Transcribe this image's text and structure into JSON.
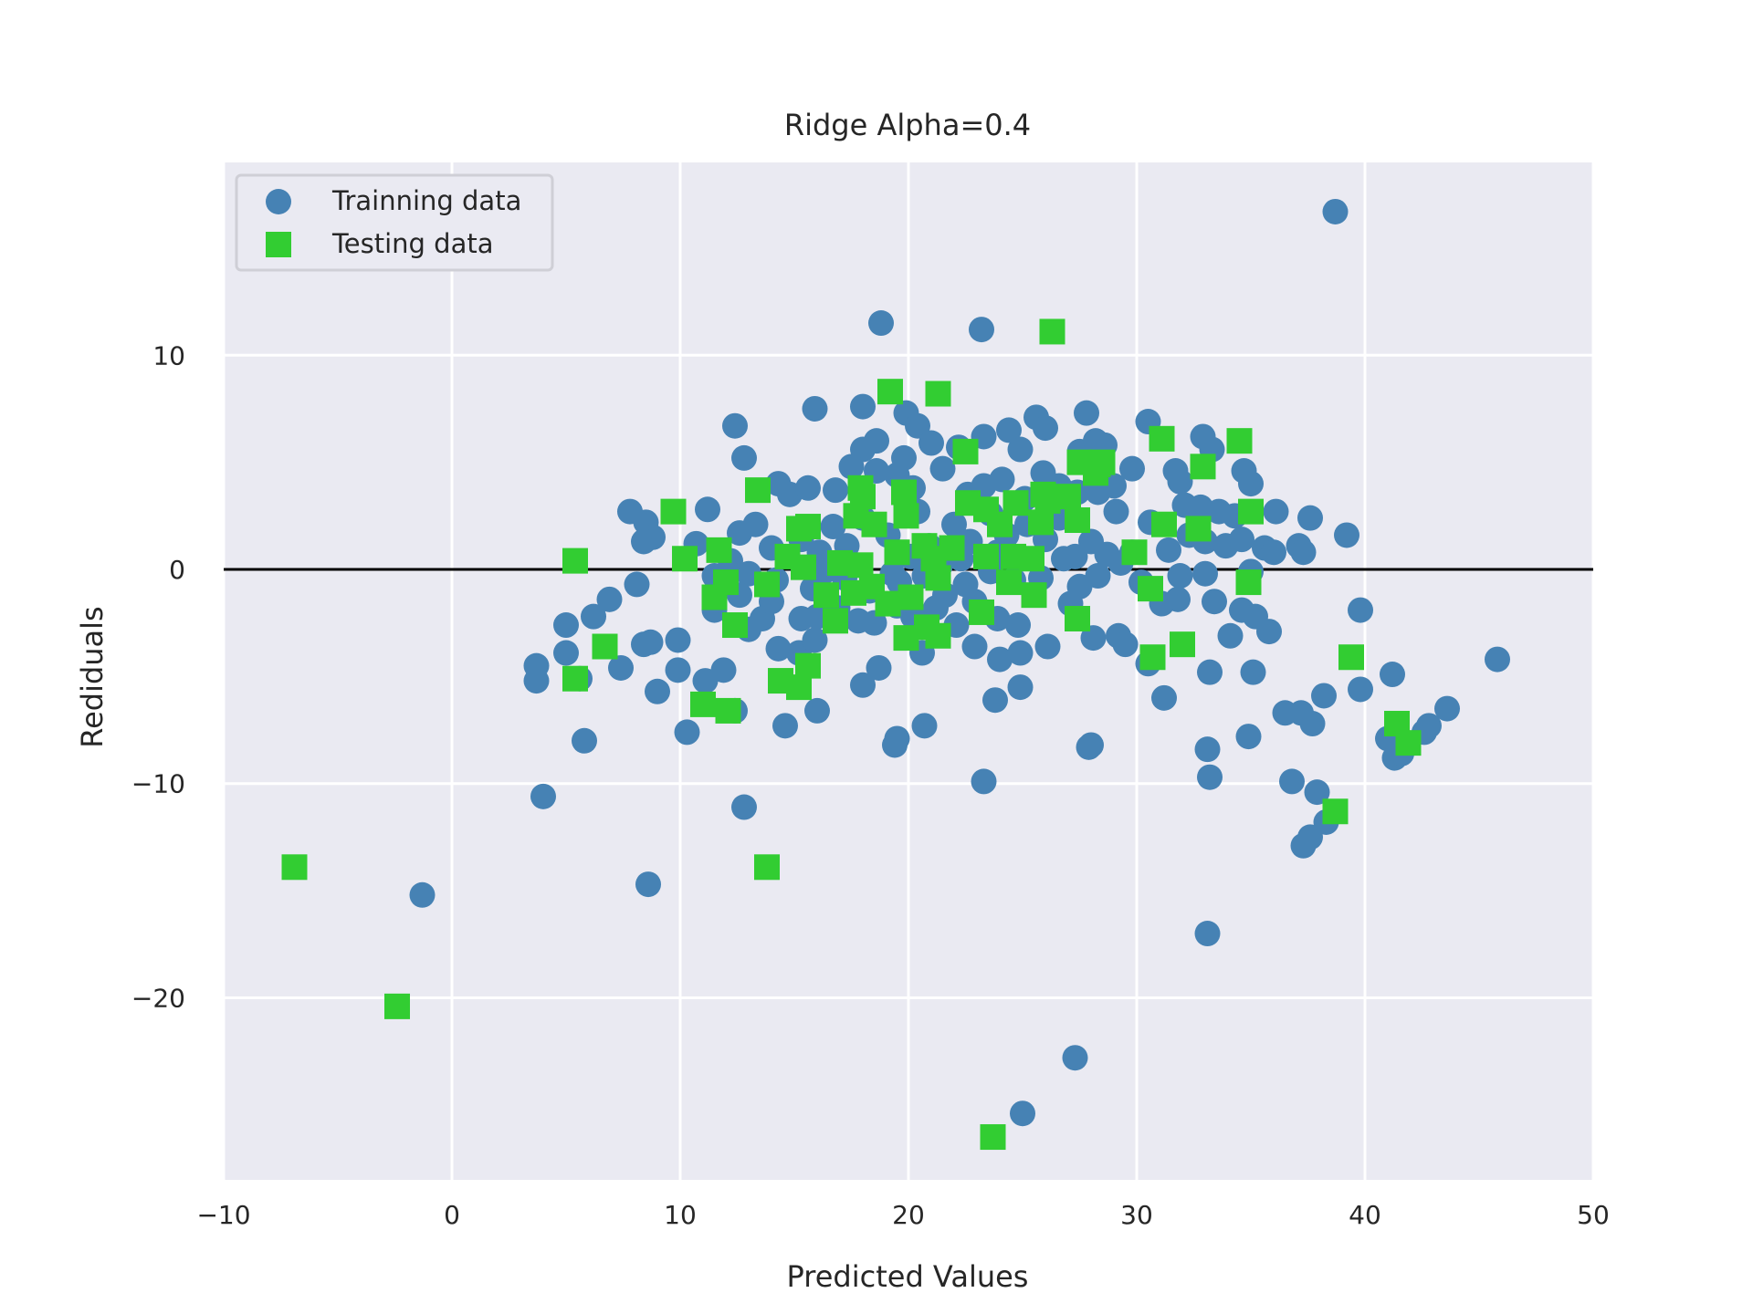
{
  "chart_data": {
    "type": "scatter",
    "title": "Ridge Alpha=0.4",
    "xlabel": "Predicted Values",
    "ylabel": "Rediduals",
    "xlim": [
      -10,
      50
    ],
    "ylim": [
      -28.5,
      19
    ],
    "xticks": [
      -10,
      0,
      10,
      20,
      30,
      40,
      50
    ],
    "xtick_labels": [
      "−10",
      "0",
      "10",
      "20",
      "30",
      "40",
      "50"
    ],
    "yticks": [
      -20,
      -10,
      0,
      10
    ],
    "ytick_labels": [
      "−20",
      "−10",
      "0",
      "10"
    ],
    "grid": true,
    "legend_position": "upper-left",
    "hline": 0,
    "colors": {
      "background": "#eaeaf2",
      "grid": "#ffffff",
      "zero_line": "#000000"
    },
    "series": [
      {
        "name": "Trainning data",
        "marker": "circle",
        "color": "#4682b4",
        "points": [
          [
            38.7,
            16.7
          ],
          [
            18.8,
            11.5
          ],
          [
            23.2,
            11.2
          ],
          [
            15.9,
            7.5
          ],
          [
            18.0,
            7.6
          ],
          [
            19.9,
            7.3
          ],
          [
            20.4,
            6.7
          ],
          [
            25.6,
            7.1
          ],
          [
            26.0,
            6.6
          ],
          [
            27.8,
            7.3
          ],
          [
            30.5,
            6.9
          ],
          [
            32.9,
            6.2
          ],
          [
            12.4,
            6.7
          ],
          [
            18.0,
            5.6
          ],
          [
            18.6,
            6.0
          ],
          [
            21.0,
            5.9
          ],
          [
            22.2,
            5.7
          ],
          [
            23.3,
            6.2
          ],
          [
            24.4,
            6.5
          ],
          [
            24.9,
            5.6
          ],
          [
            27.5,
            5.5
          ],
          [
            28.2,
            6.0
          ],
          [
            28.6,
            5.8
          ],
          [
            29.8,
            4.7
          ],
          [
            31.7,
            4.6
          ],
          [
            33.3,
            5.6
          ],
          [
            34.7,
            4.6
          ],
          [
            35.0,
            4.0
          ],
          [
            12.8,
            5.2
          ],
          [
            14.3,
            4.0
          ],
          [
            14.8,
            3.5
          ],
          [
            15.6,
            3.8
          ],
          [
            16.8,
            3.7
          ],
          [
            17.5,
            4.8
          ],
          [
            18.6,
            4.6
          ],
          [
            19.5,
            4.4
          ],
          [
            19.8,
            5.2
          ],
          [
            20.2,
            3.8
          ],
          [
            21.5,
            4.7
          ],
          [
            22.6,
            3.5
          ],
          [
            23.3,
            3.9
          ],
          [
            24.1,
            4.2
          ],
          [
            25.1,
            3.3
          ],
          [
            25.9,
            4.5
          ],
          [
            26.6,
            3.9
          ],
          [
            27.4,
            3.6
          ],
          [
            28.3,
            3.6
          ],
          [
            29.0,
            3.9
          ],
          [
            29.1,
            2.7
          ],
          [
            31.9,
            4.1
          ],
          [
            32.1,
            3.0
          ],
          [
            32.8,
            2.9
          ],
          [
            33.6,
            2.7
          ],
          [
            34.3,
            2.5
          ],
          [
            36.1,
            2.7
          ],
          [
            37.6,
            2.4
          ],
          [
            39.2,
            1.6
          ],
          [
            7.8,
            2.7
          ],
          [
            8.5,
            2.2
          ],
          [
            8.8,
            1.5
          ],
          [
            8.4,
            1.3
          ],
          [
            11.2,
            2.8
          ],
          [
            10.7,
            1.2
          ],
          [
            12.6,
            1.7
          ],
          [
            13.3,
            2.1
          ],
          [
            14.0,
            1.0
          ],
          [
            15.3,
            1.4
          ],
          [
            16.1,
            0.8
          ],
          [
            16.7,
            2.0
          ],
          [
            17.3,
            1.1
          ],
          [
            18.0,
            2.4
          ],
          [
            19.1,
            1.6
          ],
          [
            20.4,
            2.7
          ],
          [
            20.9,
            1.1
          ],
          [
            22.0,
            2.1
          ],
          [
            22.7,
            1.3
          ],
          [
            23.6,
            2.6
          ],
          [
            24.3,
            1.6
          ],
          [
            25.2,
            2.1
          ],
          [
            26.0,
            1.4
          ],
          [
            26.6,
            2.4
          ],
          [
            27.3,
            0.6
          ],
          [
            28.0,
            1.3
          ],
          [
            28.7,
            0.7
          ],
          [
            29.3,
            0.3
          ],
          [
            30.6,
            2.2
          ],
          [
            31.4,
            0.9
          ],
          [
            32.3,
            1.6
          ],
          [
            33.0,
            1.3
          ],
          [
            33.9,
            1.1
          ],
          [
            34.6,
            1.4
          ],
          [
            35.6,
            1.0
          ],
          [
            36.0,
            0.8
          ],
          [
            37.1,
            1.1
          ],
          [
            37.3,
            0.8
          ],
          [
            11.5,
            -0.3
          ],
          [
            13.0,
            -0.2
          ],
          [
            14.2,
            -0.5
          ],
          [
            15.8,
            -0.9
          ],
          [
            17.2,
            -0.4
          ],
          [
            18.3,
            -1.0
          ],
          [
            19.6,
            -0.6
          ],
          [
            20.7,
            -0.3
          ],
          [
            21.6,
            -1.2
          ],
          [
            22.5,
            -0.7
          ],
          [
            23.6,
            -0.1
          ],
          [
            24.6,
            -0.5
          ],
          [
            25.8,
            -0.4
          ],
          [
            27.5,
            -0.8
          ],
          [
            28.3,
            -0.3
          ],
          [
            30.2,
            -0.6
          ],
          [
            31.9,
            -0.3
          ],
          [
            33.0,
            -0.2
          ],
          [
            35.0,
            -0.1
          ],
          [
            11.5,
            -1.9
          ],
          [
            12.6,
            -1.2
          ],
          [
            13.6,
            -2.3
          ],
          [
            14.0,
            -1.5
          ],
          [
            15.3,
            -2.3
          ],
          [
            16.0,
            -2.2
          ],
          [
            16.9,
            -1.8
          ],
          [
            17.8,
            -2.4
          ],
          [
            18.5,
            -2.5
          ],
          [
            19.5,
            -1.7
          ],
          [
            20.2,
            -2.2
          ],
          [
            21.2,
            -1.8
          ],
          [
            22.1,
            -2.6
          ],
          [
            22.9,
            -1.5
          ],
          [
            23.9,
            -2.3
          ],
          [
            24.8,
            -2.6
          ],
          [
            27.1,
            -1.6
          ],
          [
            28.1,
            -3.2
          ],
          [
            29.2,
            -3.1
          ],
          [
            29.5,
            -3.5
          ],
          [
            31.1,
            -1.6
          ],
          [
            31.8,
            -1.4
          ],
          [
            33.4,
            -1.5
          ],
          [
            34.1,
            -3.1
          ],
          [
            34.6,
            -1.9
          ],
          [
            35.2,
            -2.2
          ],
          [
            35.8,
            -2.9
          ],
          [
            13.0,
            -2.8
          ],
          [
            5.0,
            -2.6
          ],
          [
            6.2,
            -2.2
          ],
          [
            6.9,
            -1.4
          ],
          [
            8.1,
            -0.7
          ],
          [
            9.9,
            -3.3
          ],
          [
            8.7,
            -3.4
          ],
          [
            8.4,
            -3.5
          ],
          [
            5.0,
            -3.9
          ],
          [
            3.7,
            -4.5
          ],
          [
            3.7,
            -5.2
          ],
          [
            5.6,
            -5.1
          ],
          [
            7.4,
            -4.6
          ],
          [
            9.0,
            -5.7
          ],
          [
            9.9,
            -4.7
          ],
          [
            11.1,
            -5.2
          ],
          [
            11.9,
            -4.7
          ],
          [
            14.3,
            -3.7
          ],
          [
            15.2,
            -3.9
          ],
          [
            15.9,
            -3.3
          ],
          [
            18.0,
            -5.4
          ],
          [
            18.7,
            -4.6
          ],
          [
            20.6,
            -3.9
          ],
          [
            22.9,
            -3.6
          ],
          [
            24.0,
            -4.2
          ],
          [
            24.9,
            -3.9
          ],
          [
            26.1,
            -3.6
          ],
          [
            30.5,
            -4.4
          ],
          [
            31.2,
            -6.0
          ],
          [
            33.2,
            -4.8
          ],
          [
            35.1,
            -4.8
          ],
          [
            5.8,
            -8.0
          ],
          [
            10.3,
            -7.6
          ],
          [
            12.4,
            -6.6
          ],
          [
            14.6,
            -7.3
          ],
          [
            16.0,
            -6.6
          ],
          [
            19.4,
            -8.2
          ],
          [
            19.5,
            -7.9
          ],
          [
            20.7,
            -7.3
          ],
          [
            23.8,
            -6.1
          ],
          [
            24.9,
            -5.5
          ],
          [
            27.9,
            -8.3
          ],
          [
            28.0,
            -8.2
          ],
          [
            33.1,
            -8.4
          ],
          [
            34.9,
            -7.8
          ],
          [
            36.5,
            -6.7
          ],
          [
            37.2,
            -6.7
          ],
          [
            37.7,
            -7.2
          ],
          [
            38.2,
            -5.9
          ],
          [
            39.8,
            -5.6
          ],
          [
            39.8,
            -1.9
          ],
          [
            41.2,
            -4.9
          ],
          [
            41.0,
            -7.9
          ],
          [
            41.3,
            -8.8
          ],
          [
            41.6,
            -8.6
          ],
          [
            42.6,
            -7.6
          ],
          [
            42.8,
            -7.3
          ],
          [
            43.6,
            -6.5
          ],
          [
            45.8,
            -4.2
          ],
          [
            4.0,
            -10.6
          ],
          [
            12.8,
            -11.1
          ],
          [
            23.3,
            -9.9
          ],
          [
            33.2,
            -9.7
          ],
          [
            36.8,
            -9.9
          ],
          [
            37.9,
            -10.4
          ],
          [
            38.3,
            -11.8
          ],
          [
            37.3,
            -12.9
          ],
          [
            37.6,
            -12.5
          ],
          [
            -1.3,
            -15.2
          ],
          [
            8.6,
            -14.7
          ],
          [
            33.1,
            -17.0
          ],
          [
            27.3,
            -22.8
          ],
          [
            25.0,
            -25.4
          ],
          [
            22.3,
            0.5
          ],
          [
            21.4,
            0.2
          ],
          [
            20.1,
            0.6
          ],
          [
            19.3,
            -0.2
          ],
          [
            23.9,
            0.8
          ],
          [
            26.8,
            0.5
          ],
          [
            17.6,
            0.2
          ],
          [
            16.3,
            -0.1
          ],
          [
            12.2,
            0.4
          ],
          [
            29.8,
            0.8
          ]
        ]
      },
      {
        "name": "Testing data",
        "marker": "square",
        "color": "#32cd32",
        "points": [
          [
            26.3,
            11.1
          ],
          [
            19.2,
            8.3
          ],
          [
            21.3,
            8.2
          ],
          [
            31.1,
            6.1
          ],
          [
            34.5,
            6.0
          ],
          [
            22.5,
            5.5
          ],
          [
            32.9,
            4.8
          ],
          [
            27.5,
            5.0
          ],
          [
            28.3,
            4.9
          ],
          [
            28.5,
            5.0
          ],
          [
            28.2,
            4.5
          ],
          [
            13.4,
            3.7
          ],
          [
            17.9,
            3.8
          ],
          [
            18.0,
            3.4
          ],
          [
            19.8,
            3.6
          ],
          [
            25.9,
            3.5
          ],
          [
            26.1,
            3.2
          ],
          [
            27.0,
            3.4
          ],
          [
            27.4,
            2.3
          ],
          [
            9.7,
            2.7
          ],
          [
            35.0,
            2.7
          ],
          [
            17.7,
            2.5
          ],
          [
            18.5,
            2.1
          ],
          [
            19.9,
            2.5
          ],
          [
            22.6,
            3.1
          ],
          [
            23.4,
            2.8
          ],
          [
            24.0,
            2.1
          ],
          [
            24.7,
            3.1
          ],
          [
            25.8,
            2.2
          ],
          [
            31.2,
            2.1
          ],
          [
            32.7,
            1.9
          ],
          [
            15.2,
            1.9
          ],
          [
            15.6,
            2.0
          ],
          [
            5.4,
            0.4
          ],
          [
            10.2,
            0.5
          ],
          [
            11.7,
            0.9
          ],
          [
            14.7,
            0.6
          ],
          [
            15.4,
            0.1
          ],
          [
            17.0,
            0.3
          ],
          [
            17.9,
            0.2
          ],
          [
            19.5,
            0.8
          ],
          [
            20.7,
            1.1
          ],
          [
            21.1,
            0.5
          ],
          [
            21.9,
            1.0
          ],
          [
            23.4,
            0.6
          ],
          [
            24.6,
            0.6
          ],
          [
            25.4,
            0.5
          ],
          [
            29.9,
            0.8
          ],
          [
            11.5,
            -1.3
          ],
          [
            12.4,
            -2.6
          ],
          [
            12.0,
            -0.6
          ],
          [
            13.8,
            -0.7
          ],
          [
            16.4,
            -1.2
          ],
          [
            16.8,
            -2.4
          ],
          [
            17.6,
            -1.1
          ],
          [
            18.4,
            -0.8
          ],
          [
            19.1,
            -1.6
          ],
          [
            20.1,
            -1.3
          ],
          [
            21.3,
            -0.4
          ],
          [
            23.2,
            -2.0
          ],
          [
            24.4,
            -0.6
          ],
          [
            25.5,
            -1.2
          ],
          [
            27.4,
            -2.3
          ],
          [
            30.6,
            -0.9
          ],
          [
            34.9,
            -0.6
          ],
          [
            5.4,
            -5.1
          ],
          [
            6.7,
            -3.6
          ],
          [
            14.4,
            -5.2
          ],
          [
            15.2,
            -5.5
          ],
          [
            15.6,
            -4.5
          ],
          [
            19.9,
            -3.2
          ],
          [
            20.8,
            -2.7
          ],
          [
            21.3,
            -3.1
          ],
          [
            30.7,
            -4.1
          ],
          [
            32.0,
            -3.5
          ],
          [
            39.4,
            -4.1
          ],
          [
            11.0,
            -6.3
          ],
          [
            12.1,
            -6.6
          ],
          [
            41.4,
            -7.2
          ],
          [
            41.9,
            -8.1
          ],
          [
            38.7,
            -11.3
          ],
          [
            -6.9,
            -13.9
          ],
          [
            13.8,
            -13.9
          ],
          [
            -2.4,
            -20.4
          ],
          [
            23.7,
            -26.5
          ]
        ]
      }
    ]
  }
}
